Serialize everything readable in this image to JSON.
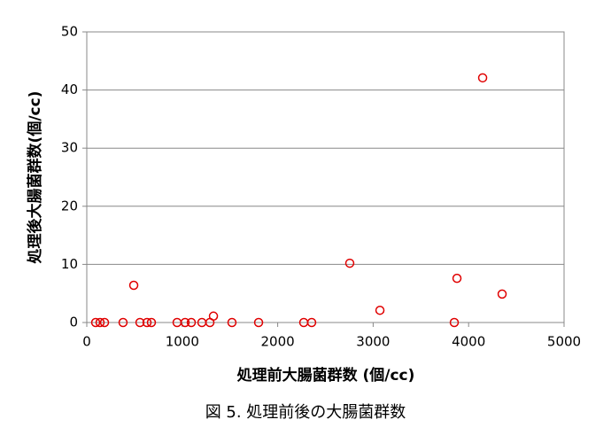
{
  "chart_data": {
    "type": "scatter",
    "title": "図 5.  処理前後の大腸菌群数",
    "x_label": "処理前大腸菌群数 (個/cc)",
    "y_label": "処理後大腸菌群数(個/cc)",
    "x": [
      93,
      139,
      186,
      380,
      492,
      557,
      631,
      677,
      946,
      1030,
      1095,
      1206,
      1290,
      1327,
      1521,
      1800,
      2273,
      2356,
      2755,
      3071,
      3850,
      3878,
      4147,
      4351
    ],
    "values": [
      0,
      0,
      0,
      0,
      6.4,
      0,
      0,
      0,
      0,
      0,
      0,
      0,
      0,
      1.1,
      0,
      0,
      0,
      0,
      10.2,
      2.1,
      0,
      7.6,
      42.1,
      4.9
    ],
    "color": "#e00000",
    "xlim": [
      0,
      5000
    ],
    "xticks": [
      0,
      1000,
      2000,
      3000,
      4000,
      5000
    ],
    "ylim": [
      0,
      50
    ],
    "yticks": [
      0,
      10,
      20,
      30,
      40,
      50
    ],
    "grid": true
  }
}
